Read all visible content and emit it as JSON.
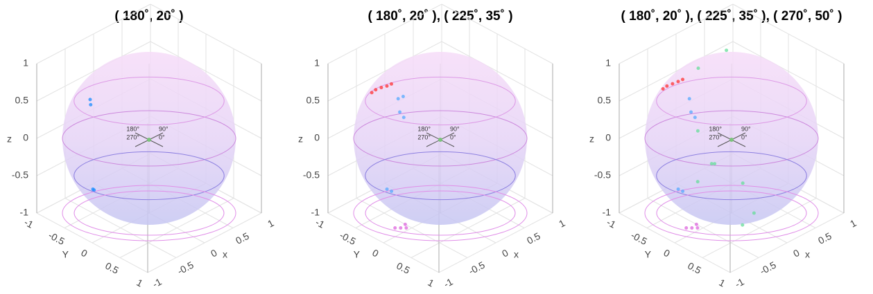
{
  "chart_data": [
    {
      "type": "scatter3d",
      "title": "( 180˚, 20˚ )",
      "xlabel": "x",
      "ylabel": "Y",
      "zlabel": "z",
      "xlim": [
        -1,
        1
      ],
      "ylim": [
        -1,
        1
      ],
      "zlim": [
        -1,
        1
      ],
      "xticks": [
        -1,
        -0.5,
        0,
        0.5,
        1
      ],
      "yticks": [
        -1,
        -0.5,
        0,
        0.5,
        1
      ],
      "zticks": [
        -1,
        -0.5,
        0,
        0.5,
        1
      ],
      "direction_labels": [
        "180°",
        "90°",
        "270°",
        "0°"
      ],
      "series": [
        {
          "color": "#1a8cff",
          "x": [
            -0.5,
            -0.52,
            -0.48,
            -0.5
          ],
          "y": [
            -0.55,
            -0.52,
            -0.5,
            -0.5
          ],
          "z": [
            0.5,
            0.45,
            -0.7,
            -0.68
          ]
        }
      ]
    },
    {
      "type": "scatter3d",
      "title": "( 180˚, 20˚ ), ( 225˚, 35˚ )",
      "xlabel": "x",
      "ylabel": "Y",
      "zlabel": "z",
      "xlim": [
        -1,
        1
      ],
      "ylim": [
        -1,
        1
      ],
      "zlim": [
        -1,
        1
      ],
      "xticks": [
        -1,
        -0.5,
        0,
        0.5,
        1
      ],
      "yticks": [
        -1,
        -0.5,
        0,
        0.5,
        1
      ],
      "zticks": [
        -1,
        -0.5,
        0,
        0.5,
        1
      ],
      "direction_labels": [
        "180°",
        "90°",
        "270°",
        "0°"
      ],
      "series": [
        {
          "color": "#ff3333",
          "x": [
            -0.6,
            -0.55,
            -0.5,
            -0.62,
            -0.45
          ],
          "y": [
            -0.55,
            -0.5,
            -0.45,
            -0.6,
            -0.42
          ],
          "z": [
            0.67,
            0.7,
            0.72,
            0.62,
            0.74
          ]
        },
        {
          "color": "#55aaff",
          "x": [
            -0.4,
            -0.42,
            -0.35,
            -0.38,
            -0.45,
            -0.42
          ],
          "y": [
            -0.35,
            -0.3,
            -0.3,
            -0.28,
            -0.5,
            -0.45
          ],
          "z": [
            0.55,
            0.4,
            0.3,
            0.6,
            -0.7,
            -0.72
          ]
        },
        {
          "color": "#dd66dd",
          "x": [
            -0.6,
            -0.55,
            -0.5,
            -0.65
          ],
          "y": [
            -0.1,
            -0.05,
            -0.12,
            -0.15
          ],
          "z": [
            -1,
            -1,
            -1,
            -1
          ]
        }
      ]
    },
    {
      "type": "scatter3d",
      "title": "( 180˚, 20˚ ), ( 225˚, 35˚ ), ( 270˚, 50˚ )",
      "xlabel": "x",
      "ylabel": "Y",
      "zlabel": "z",
      "xlim": [
        -1,
        1
      ],
      "ylim": [
        -1,
        1
      ],
      "zlim": [
        -1,
        1
      ],
      "xticks": [
        -1,
        -0.5,
        0,
        0.5,
        1
      ],
      "yticks": [
        -1,
        -0.5,
        0,
        0.5,
        1
      ],
      "zticks": [
        -1,
        -0.5,
        0,
        0.5,
        1
      ],
      "direction_labels": [
        "180°",
        "90°",
        "270°",
        "0°"
      ],
      "series": [
        {
          "color": "#ff3333",
          "x": [
            -0.6,
            -0.55,
            -0.5,
            -0.62,
            -0.45
          ],
          "y": [
            -0.55,
            -0.5,
            -0.45,
            -0.6,
            -0.42
          ],
          "z": [
            0.72,
            0.75,
            0.78,
            0.67,
            0.8
          ]
        },
        {
          "color": "#55aaff",
          "x": [
            -0.4,
            -0.42,
            -0.35,
            -0.45,
            -0.42
          ],
          "y": [
            -0.35,
            -0.3,
            -0.3,
            -0.5,
            -0.45
          ],
          "z": [
            0.55,
            0.4,
            0.3,
            -0.7,
            -0.72
          ]
        },
        {
          "color": "#66dd99",
          "x": [
            -0.3,
            -0.2,
            0.1,
            0.3,
            -0.35,
            -0.1,
            0.2,
            0.0,
            -0.4
          ],
          "y": [
            -0.3,
            -0.1,
            0.1,
            -0.4,
            0.0,
            0.3,
            0.2,
            -0.6,
            -0.2
          ],
          "z": [
            0.1,
            -0.3,
            -0.6,
            0.9,
            -0.2,
            -1,
            -1,
            0.7,
            -0.5
          ]
        },
        {
          "color": "#dd66dd",
          "x": [
            -0.6,
            -0.55,
            -0.5,
            -0.65
          ],
          "y": [
            -0.1,
            -0.05,
            -0.12,
            -0.15
          ],
          "z": [
            -1,
            -1,
            -1,
            -1
          ]
        }
      ]
    }
  ]
}
